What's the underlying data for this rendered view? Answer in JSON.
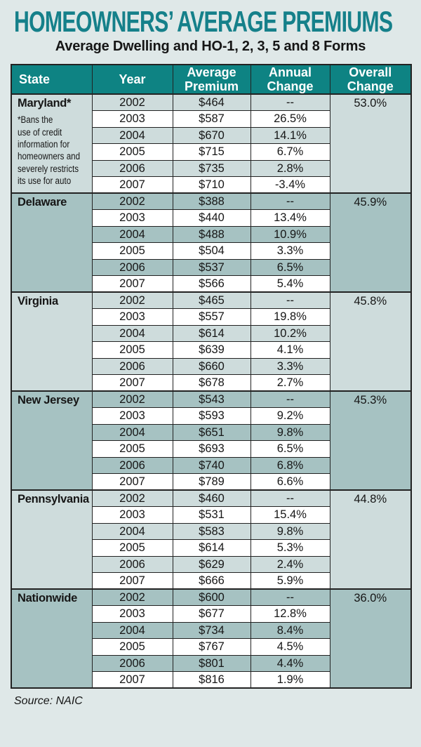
{
  "page": {
    "title": "HOMEOWNERS’ AVERAGE PREMIUMS",
    "subtitle": "Average Dwelling and HO-1, 2, 3, 5 and 8 Forms",
    "source": "Source: NAIC"
  },
  "colors": {
    "page_bg": "#dfe8e8",
    "title": "#15808a",
    "header_bg": "#0e8383",
    "header_text": "#ffffff",
    "shade_light": "#cedcdc",
    "shade_dark": "#a6c2c2",
    "row_white": "#ffffff",
    "border": "#222222",
    "text": "#161616"
  },
  "table": {
    "columns": [
      "State",
      "Year",
      "Average\nPremium",
      "Annual\nChange",
      "Overall\nChange"
    ],
    "groups": [
      {
        "state": "Maryland*",
        "note_lines": [
          "*Bans the",
          "use of credit",
          "information for",
          "homeowners and",
          "severely restricts",
          "its use for auto"
        ],
        "shade": "light",
        "overall_change": "53.0%",
        "rows": [
          {
            "year": "2002",
            "premium": "$464",
            "change": "--"
          },
          {
            "year": "2003",
            "premium": "$587",
            "change": "26.5%"
          },
          {
            "year": "2004",
            "premium": "$670",
            "change": "14.1%"
          },
          {
            "year": "2005",
            "premium": "$715",
            "change": "6.7%"
          },
          {
            "year": "2006",
            "premium": "$735",
            "change": "2.8%"
          },
          {
            "year": "2007",
            "premium": "$710",
            "change": "-3.4%"
          }
        ]
      },
      {
        "state": "Delaware",
        "note_lines": [],
        "shade": "dark",
        "overall_change": "45.9%",
        "rows": [
          {
            "year": "2002",
            "premium": "$388",
            "change": "--"
          },
          {
            "year": "2003",
            "premium": "$440",
            "change": "13.4%"
          },
          {
            "year": "2004",
            "premium": "$488",
            "change": "10.9%"
          },
          {
            "year": "2005",
            "premium": "$504",
            "change": "3.3%"
          },
          {
            "year": "2006",
            "premium": "$537",
            "change": "6.5%"
          },
          {
            "year": "2007",
            "premium": "$566",
            "change": "5.4%"
          }
        ]
      },
      {
        "state": "Virginia",
        "note_lines": [],
        "shade": "light",
        "overall_change": "45.8%",
        "rows": [
          {
            "year": "2002",
            "premium": "$465",
            "change": "--"
          },
          {
            "year": "2003",
            "premium": "$557",
            "change": "19.8%"
          },
          {
            "year": "2004",
            "premium": "$614",
            "change": "10.2%"
          },
          {
            "year": "2005",
            "premium": "$639",
            "change": "4.1%"
          },
          {
            "year": "2006",
            "premium": "$660",
            "change": "3.3%"
          },
          {
            "year": "2007",
            "premium": "$678",
            "change": "2.7%"
          }
        ]
      },
      {
        "state": "New Jersey",
        "note_lines": [],
        "shade": "dark",
        "overall_change": "45.3%",
        "rows": [
          {
            "year": "2002",
            "premium": "$543",
            "change": "--"
          },
          {
            "year": "2003",
            "premium": "$593",
            "change": "9.2%"
          },
          {
            "year": "2004",
            "premium": "$651",
            "change": "9.8%"
          },
          {
            "year": "2005",
            "premium": "$693",
            "change": "6.5%"
          },
          {
            "year": "2006",
            "premium": "$740",
            "change": "6.8%"
          },
          {
            "year": "2007",
            "premium": "$789",
            "change": "6.6%"
          }
        ]
      },
      {
        "state": "Pennsylvania",
        "note_lines": [],
        "shade": "light",
        "overall_change": "44.8%",
        "rows": [
          {
            "year": "2002",
            "premium": "$460",
            "change": "--"
          },
          {
            "year": "2003",
            "premium": "$531",
            "change": "15.4%"
          },
          {
            "year": "2004",
            "premium": "$583",
            "change": "9.8%"
          },
          {
            "year": "2005",
            "premium": "$614",
            "change": "5.3%"
          },
          {
            "year": "2006",
            "premium": "$629",
            "change": "2.4%"
          },
          {
            "year": "2007",
            "premium": "$666",
            "change": "5.9%"
          }
        ]
      },
      {
        "state": "Nationwide",
        "note_lines": [],
        "shade": "dark",
        "overall_change": "36.0%",
        "rows": [
          {
            "year": "2002",
            "premium": "$600",
            "change": "--"
          },
          {
            "year": "2003",
            "premium": "$677",
            "change": "12.8%"
          },
          {
            "year": "2004",
            "premium": "$734",
            "change": "8.4%"
          },
          {
            "year": "2005",
            "premium": "$767",
            "change": "4.5%"
          },
          {
            "year": "2006",
            "premium": "$801",
            "change": "4.4%"
          },
          {
            "year": "2007",
            "premium": "$816",
            "change": "1.9%"
          }
        ]
      }
    ]
  },
  "chart_data": {
    "type": "table",
    "title": "HOMEOWNERS’ AVERAGE PREMIUMS",
    "subtitle": "Average Dwelling and HO-1, 2, 3, 5 and 8 Forms",
    "columns": [
      "State",
      "Year",
      "Average Premium",
      "Annual Change",
      "Overall Change"
    ],
    "rows": [
      [
        "Maryland*",
        "2002",
        "$464",
        "--",
        "53.0%"
      ],
      [
        "Maryland*",
        "2003",
        "$587",
        "26.5%",
        ""
      ],
      [
        "Maryland*",
        "2004",
        "$670",
        "14.1%",
        ""
      ],
      [
        "Maryland*",
        "2005",
        "$715",
        "6.7%",
        ""
      ],
      [
        "Maryland*",
        "2006",
        "$735",
        "2.8%",
        ""
      ],
      [
        "Maryland*",
        "2007",
        "$710",
        "-3.4%",
        ""
      ],
      [
        "Delaware",
        "2002",
        "$388",
        "--",
        "45.9%"
      ],
      [
        "Delaware",
        "2003",
        "$440",
        "13.4%",
        ""
      ],
      [
        "Delaware",
        "2004",
        "$488",
        "10.9%",
        ""
      ],
      [
        "Delaware",
        "2005",
        "$504",
        "3.3%",
        ""
      ],
      [
        "Delaware",
        "2006",
        "$537",
        "6.5%",
        ""
      ],
      [
        "Delaware",
        "2007",
        "$566",
        "5.4%",
        ""
      ],
      [
        "Virginia",
        "2002",
        "$465",
        "--",
        "45.8%"
      ],
      [
        "Virginia",
        "2003",
        "$557",
        "19.8%",
        ""
      ],
      [
        "Virginia",
        "2004",
        "$614",
        "10.2%",
        ""
      ],
      [
        "Virginia",
        "2005",
        "$639",
        "4.1%",
        ""
      ],
      [
        "Virginia",
        "2006",
        "$660",
        "3.3%",
        ""
      ],
      [
        "Virginia",
        "2007",
        "$678",
        "2.7%",
        ""
      ],
      [
        "New Jersey",
        "2002",
        "$543",
        "--",
        "45.3%"
      ],
      [
        "New Jersey",
        "2003",
        "$593",
        "9.2%",
        ""
      ],
      [
        "New Jersey",
        "2004",
        "$651",
        "9.8%",
        ""
      ],
      [
        "New Jersey",
        "2005",
        "$693",
        "6.5%",
        ""
      ],
      [
        "New Jersey",
        "2006",
        "$740",
        "6.8%",
        ""
      ],
      [
        "New Jersey",
        "2007",
        "$789",
        "6.6%",
        ""
      ],
      [
        "Pennsylvania",
        "2002",
        "$460",
        "--",
        "44.8%"
      ],
      [
        "Pennsylvania",
        "2003",
        "$531",
        "15.4%",
        ""
      ],
      [
        "Pennsylvania",
        "2004",
        "$583",
        "9.8%",
        ""
      ],
      [
        "Pennsylvania",
        "2005",
        "$614",
        "5.3%",
        ""
      ],
      [
        "Pennsylvania",
        "2006",
        "$629",
        "2.4%",
        ""
      ],
      [
        "Pennsylvania",
        "2007",
        "$666",
        "5.9%",
        ""
      ],
      [
        "Nationwide",
        "2002",
        "$600",
        "--",
        "36.0%"
      ],
      [
        "Nationwide",
        "2003",
        "$677",
        "12.8%",
        ""
      ],
      [
        "Nationwide",
        "2004",
        "$734",
        "8.4%",
        ""
      ],
      [
        "Nationwide",
        "2005",
        "$767",
        "4.5%",
        ""
      ],
      [
        "Nationwide",
        "2006",
        "$801",
        "4.4%",
        ""
      ],
      [
        "Nationwide",
        "2007",
        "$816",
        "1.9%",
        ""
      ]
    ],
    "footnote": "*Bans the use of credit information for homeowners and severely restricts its use for auto",
    "source": "Source: NAIC"
  }
}
